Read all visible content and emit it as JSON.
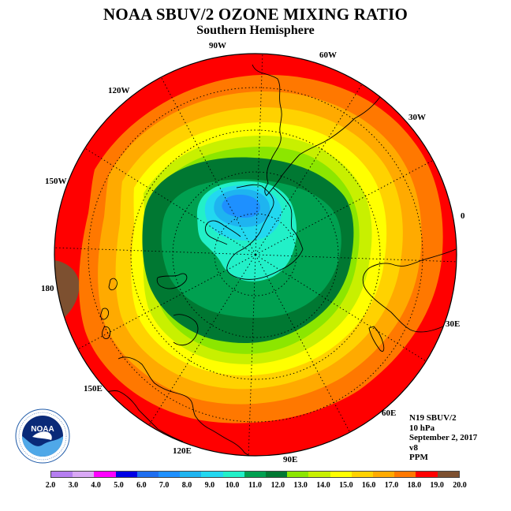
{
  "title": "NOAA SBUV/2 OZONE MIXING RATIO",
  "subtitle": "Southern Hemisphere",
  "longitude_labels": [
    "90W",
    "60W",
    "30W",
    "0",
    "30E",
    "60E",
    "90E",
    "120E",
    "150E",
    "180",
    "150W",
    "120W"
  ],
  "info": {
    "satellite": "N19 SBUV/2",
    "level": "10 hPa",
    "date": "September 2, 2017",
    "version": "v8",
    "units": "PPM"
  },
  "logo_text": "NOAA",
  "chart_data": {
    "type": "heatmap",
    "projection": "south polar stereographic",
    "colorbar": {
      "ticks": [
        "2.0",
        "3.0",
        "4.0",
        "5.0",
        "6.0",
        "7.0",
        "8.0",
        "9.0",
        "10.0",
        "11.0",
        "12.0",
        "13.0",
        "14.0",
        "15.0",
        "16.0",
        "17.0",
        "18.0",
        "19.0",
        "20.0"
      ],
      "colors": [
        "#b57ef0",
        "#d9a8f5",
        "#ff00ff",
        "#0000e6",
        "#1e6ef0",
        "#1e90ff",
        "#1eb4f0",
        "#22d8f0",
        "#22f0c8",
        "#00a050",
        "#007832",
        "#8ce600",
        "#c8f000",
        "#ffff00",
        "#ffd200",
        "#ffaa00",
        "#ff7800",
        "#ff0000",
        "#7d5030"
      ]
    },
    "field_summary": {
      "minimum_range_ppm": [
        6.0,
        7.0
      ],
      "center_range_ppm": [
        9.0,
        10.0
      ],
      "outer_edge_range_ppm": [
        18.0,
        19.0
      ],
      "local_maximum_range_ppm": [
        19.0,
        20.0
      ],
      "local_maximum_longitude": "180"
    }
  }
}
